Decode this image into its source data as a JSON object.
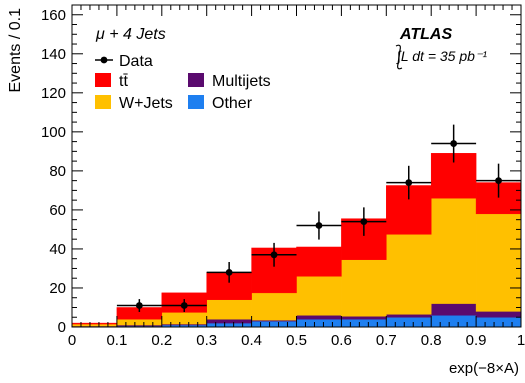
{
  "chart_data": {
    "type": "bar",
    "stacked": true,
    "x_bin_edges": [
      0,
      0.1,
      0.2,
      0.3,
      0.4,
      0.5,
      0.6,
      0.7,
      0.8,
      0.9,
      1.0
    ],
    "xlim": [
      0,
      1
    ],
    "ylim": [
      0,
      165
    ],
    "x_ticks": [
      "0",
      "0.1",
      "0.2",
      "0.3",
      "0.4",
      "0.5",
      "0.6",
      "0.7",
      "0.8",
      "0.9",
      "1"
    ],
    "x_tick_values": [
      0,
      0.1,
      0.2,
      0.3,
      0.4,
      0.5,
      0.6,
      0.7,
      0.8,
      0.9,
      1.0
    ],
    "y_ticks": [
      "0",
      "20",
      "40",
      "60",
      "80",
      "100",
      "120",
      "140",
      "160"
    ],
    "y_tick_values": [
      0,
      20,
      40,
      60,
      80,
      100,
      120,
      140,
      160
    ],
    "xlabel": "exp(−8×A)",
    "ylabel": "Events / 0.1",
    "annotation": "μ + 4 Jets",
    "experiment_label": "ATLAS",
    "luminosity_label": "∫L dt = 35 pb⁻¹",
    "legend_placement": "top-left",
    "legend": [
      {
        "key": "data",
        "label": "Data",
        "marker": "point",
        "color": "#000000"
      },
      {
        "key": "ttbar",
        "label": "tt̄",
        "marker": "box",
        "color": "#ff0000"
      },
      {
        "key": "multijets",
        "label": "Multijets",
        "marker": "box",
        "color": "#5a0a6e"
      },
      {
        "key": "wjets",
        "label": "W+Jets",
        "marker": "box",
        "color": "#ffc000"
      },
      {
        "key": "other",
        "label": "Other",
        "marker": "box",
        "color": "#1e7ff0"
      }
    ],
    "series": [
      {
        "key": "other",
        "values": [
          0.3,
          0.5,
          1,
          2,
          3,
          4,
          4,
          5,
          6,
          5
        ]
      },
      {
        "key": "multijets",
        "values": [
          0.2,
          0.5,
          0.5,
          2,
          0.5,
          2,
          1.5,
          1.5,
          6,
          3
        ]
      },
      {
        "key": "wjets",
        "values": [
          1,
          3,
          6,
          10,
          14,
          20,
          29,
          41,
          54,
          50
        ]
      },
      {
        "key": "ttbar",
        "values": [
          0.5,
          6,
          10,
          14,
          23,
          15,
          21,
          25,
          23,
          16
        ]
      }
    ],
    "data_points": {
      "x": [
        0.15,
        0.25,
        0.35,
        0.45,
        0.55,
        0.65,
        0.75,
        0.85,
        0.95
      ],
      "y": [
        11,
        11,
        28,
        37,
        52,
        54,
        74,
        94,
        75
      ],
      "yerr": [
        3.3,
        3.3,
        5.3,
        6.1,
        7.2,
        7.3,
        8.6,
        9.7,
        8.7
      ]
    }
  }
}
